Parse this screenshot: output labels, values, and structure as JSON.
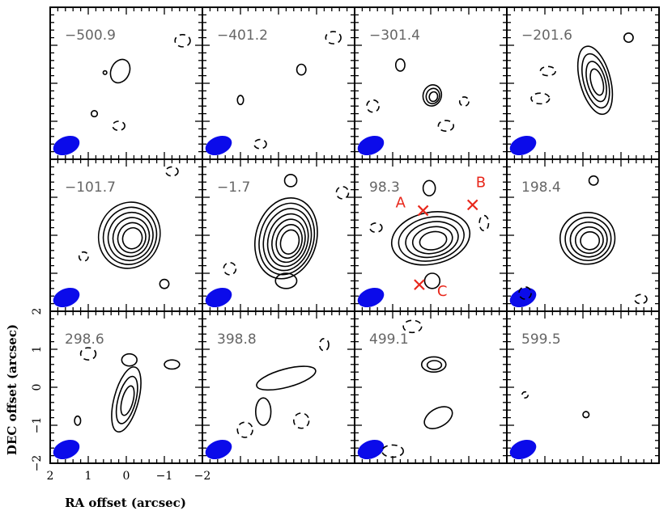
{
  "chart_data": {
    "type": "contour",
    "panels": [
      {
        "velocity": "−500.9"
      },
      {
        "velocity": "−401.2"
      },
      {
        "velocity": "−301.4"
      },
      {
        "velocity": "−201.6"
      },
      {
        "velocity": "−101.7"
      },
      {
        "velocity": "−1.7"
      },
      {
        "velocity": "98.3"
      },
      {
        "velocity": "198.4"
      },
      {
        "velocity": "298.6"
      },
      {
        "velocity": "398.8"
      },
      {
        "velocity": "499.1"
      },
      {
        "velocity": "599.5"
      }
    ],
    "xlabel": "RA offset (arcsec)",
    "ylabel": "DEC offset (arcsec)",
    "xlim": [
      2,
      -2
    ],
    "ylim": [
      -2,
      2
    ],
    "x_ticks": [
      "2",
      "1",
      "0",
      "−1",
      "−2"
    ],
    "y_ticks": [
      "2",
      "1",
      "0",
      "−1",
      "−2"
    ],
    "markers": [
      {
        "label": "A",
        "panel": 6,
        "x": 0.2,
        "y": 0.65
      },
      {
        "label": "B",
        "panel": 6,
        "x": -1.1,
        "y": 0.8
      },
      {
        "label": "C",
        "panel": 6,
        "x": 0.3,
        "y": -1.3
      }
    ],
    "beam_color": "#0b0bea",
    "marker_color": "#e8271b"
  }
}
